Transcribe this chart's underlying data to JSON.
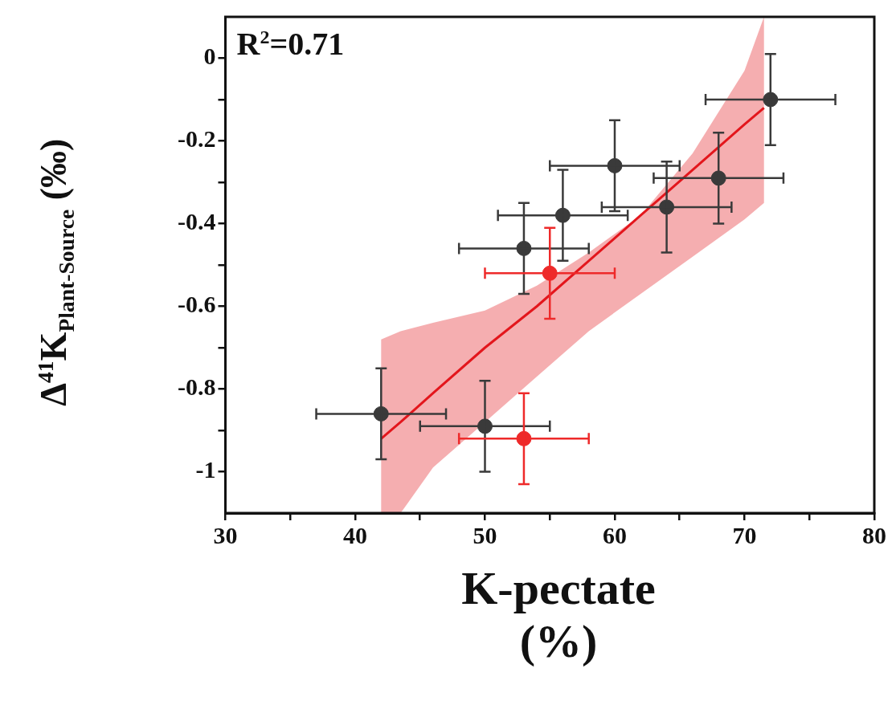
{
  "chart_data": {
    "type": "scatter",
    "xlabel": "K-pectate (%)",
    "ylabel": "Δ$^{41}$K$_{Plant-Source}$ (‰)",
    "annotations": [
      "R$^{2}$=0.71"
    ],
    "xlim": [
      30,
      80
    ],
    "xticks": [
      30,
      {
        "value": 35,
        "label": null
      },
      40,
      {
        "value": 45,
        "label": null
      },
      50,
      {
        "value": 55,
        "label": null
      },
      60,
      {
        "value": 65,
        "label": null
      },
      70,
      {
        "value": 75,
        "label": null
      },
      80
    ],
    "ylim": [
      -1.1,
      0.1
    ],
    "yticks": [
      -1,
      {
        "value": -0.9,
        "label": null
      },
      -0.8,
      {
        "value": -0.7,
        "label": null
      },
      -0.6,
      {
        "value": -0.5,
        "label": null
      },
      -0.4,
      {
        "value": -0.3,
        "label": null
      },
      -0.2,
      {
        "value": -0.1,
        "label": null
      },
      0
    ],
    "marker": "circle",
    "series": [
      {
        "color": "#3a3a3a",
        "x": [
          42,
          50,
          53,
          56,
          60,
          64,
          68,
          72
        ],
        "values": [
          -0.86,
          -0.89,
          -0.46,
          -0.38,
          -0.26,
          -0.36,
          -0.29,
          -0.1
        ],
        "errors": [
          0.11,
          0.11,
          0.11,
          0.11,
          0.11,
          0.11,
          0.11,
          0.11
        ],
        "xerrors": [
          5,
          5,
          5,
          5,
          5,
          5,
          5,
          5
        ]
      },
      {
        "color": "#ee2a2a",
        "x": [
          55,
          53
        ],
        "values": [
          -0.52,
          -0.92
        ],
        "errors": [
          0.11,
          0.11
        ],
        "xerrors": [
          5,
          5
        ]
      },
      {
        "type": "line",
        "color": "#e3161c",
        "line_style": "solid",
        "marker": "none",
        "x": [
          42,
          43.5,
          46,
          50,
          54,
          58,
          62,
          66,
          70,
          71.5
        ],
        "values": [
          -0.92,
          -0.88,
          -0.81,
          -0.7,
          -0.6,
          -0.49,
          -0.38,
          -0.27,
          -0.16,
          -0.12
        ],
        "upper": [
          -0.68,
          -0.66,
          -0.64,
          -0.61,
          -0.55,
          -0.47,
          -0.38,
          -0.23,
          -0.03,
          0.1
        ],
        "lower": [
          -1.1,
          -1.1,
          -0.99,
          -0.88,
          -0.77,
          -0.66,
          -0.57,
          -0.48,
          -0.39,
          -0.35
        ]
      }
    ]
  }
}
